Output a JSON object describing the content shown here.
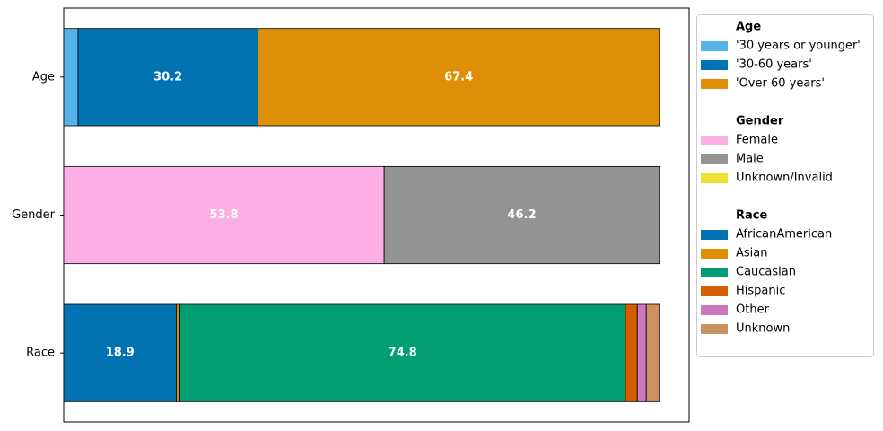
{
  "chart_data": {
    "type": "stacked_bar",
    "orientation": "horizontal",
    "categories": [
      "Age",
      "Gender",
      "Race"
    ],
    "xlim": [
      0,
      105
    ],
    "groups": [
      {
        "name": "Age",
        "series": [
          {
            "name": "'30 years or younger'",
            "color": "#56b4e9",
            "value": 2.4
          },
          {
            "name": "'30-60 years'",
            "color": "#0173b2",
            "value": 30.2
          },
          {
            "name": "'Over 60 years'",
            "color": "#de8f05",
            "value": 67.4
          }
        ]
      },
      {
        "name": "Gender",
        "series": [
          {
            "name": "Female",
            "color": "#fbafe4",
            "value": 53.8
          },
          {
            "name": "Male",
            "color": "#949494",
            "value": 46.2
          },
          {
            "name": "Unknown/Invalid",
            "color": "#ece133",
            "value": 0
          }
        ]
      },
      {
        "name": "Race",
        "series": [
          {
            "name": "AfricanAmerican",
            "color": "#0173b2",
            "value": 18.9
          },
          {
            "name": "Asian",
            "color": "#de8f05",
            "value": 0.6
          },
          {
            "name": "Caucasian",
            "color": "#029e73",
            "value": 74.8
          },
          {
            "name": "Hispanic",
            "color": "#d55e00",
            "value": 2.0
          },
          {
            "name": "Other",
            "color": "#cc78bc",
            "value": 1.5
          },
          {
            "name": "Unknown",
            "color": "#ca9161",
            "value": 2.2
          }
        ]
      }
    ],
    "legend": "outside-right"
  }
}
